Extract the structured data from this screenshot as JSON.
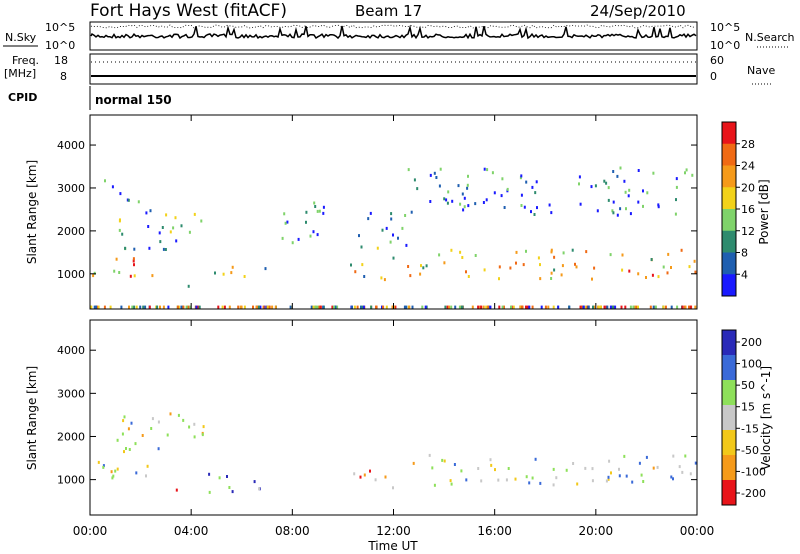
{
  "header": {
    "station": "Fort Hays West (fitACF)",
    "beam": "Beam 17",
    "date": "24/Sep/2010"
  },
  "noise_panel": {
    "left_label": "N.Sky",
    "left_ticks": [
      "10^5",
      "10^0"
    ],
    "right_label": "N.Search",
    "right_ticks": [
      "10^5",
      "10^0"
    ]
  },
  "freq_panel": {
    "left_label_1": "Freq.",
    "left_label_2": "[MHz]",
    "left_ticks": [
      "18",
      "8"
    ],
    "right_label": "Nave",
    "right_ticks": [
      "60",
      "0"
    ]
  },
  "cpid_panel": {
    "label": "CPID",
    "value": "normal 150"
  },
  "x_axis": {
    "label": "Time UT",
    "ticks": [
      "00:00",
      "04:00",
      "08:00",
      "12:00",
      "16:00",
      "20:00",
      "00:00"
    ]
  },
  "colors": {
    "power_scale": [
      "#1a1aff",
      "#1f5fb0",
      "#2e8b6e",
      "#7fd36a",
      "#f2d21a",
      "#f59a1a",
      "#f06a14",
      "#e8141a"
    ],
    "velocity_scale": [
      "#2a2ab8",
      "#3a6ad8",
      "#8ee05a",
      "#c8c8c8",
      "#f2c81a",
      "#f59a1a",
      "#e8141a"
    ]
  },
  "chart_data": [
    {
      "type": "heatmap",
      "title": "Power",
      "ylabel": "Slant Range [km]",
      "xlabel": "Time UT",
      "x_ticks": [
        "00:00",
        "04:00",
        "08:00",
        "12:00",
        "16:00",
        "20:00",
        "00:00"
      ],
      "xlim_hours": [
        0,
        24
      ],
      "ylim": [
        180,
        4700
      ],
      "y_ticks": [
        "1000",
        "2000",
        "3000",
        "4000"
      ],
      "colorbar": {
        "label": "Power [dB]",
        "ticks": [
          "4",
          "8",
          "12",
          "16",
          "20",
          "24",
          "28"
        ],
        "range": [
          0,
          30
        ]
      },
      "regions": [
        {
          "t0": 0.0,
          "t1": 2.5,
          "r0": 900,
          "r1": 1500,
          "level": 0.65
        },
        {
          "t0": 1.0,
          "t1": 4.5,
          "r0": 1600,
          "r1": 2600,
          "level": 0.3
        },
        {
          "t0": 0.5,
          "t1": 2.0,
          "r0": 2700,
          "r1": 3300,
          "level": 0.25
        },
        {
          "t0": 2.7,
          "t1": 4.0,
          "r0": 650,
          "r1": 800,
          "level": 0.45
        },
        {
          "t0": 4.6,
          "t1": 7.0,
          "r0": 850,
          "r1": 1200,
          "level": 0.5
        },
        {
          "t0": 7.5,
          "t1": 9.5,
          "r0": 1700,
          "r1": 2900,
          "level": 0.2
        },
        {
          "t0": 10.0,
          "t1": 12.0,
          "r0": 900,
          "r1": 1300,
          "level": 0.5
        },
        {
          "t0": 10.5,
          "t1": 12.5,
          "r0": 1400,
          "r1": 2500,
          "level": 0.25
        },
        {
          "t0": 12.5,
          "t1": 24.0,
          "r0": 900,
          "r1": 1600,
          "level": 0.6
        },
        {
          "t0": 12.5,
          "t1": 24.0,
          "r0": 2400,
          "r1": 3500,
          "level": 0.2
        }
      ]
    },
    {
      "type": "heatmap",
      "title": "Velocity",
      "ylabel": "Slant Range [km]",
      "xlabel": "Time UT",
      "x_ticks": [
        "00:00",
        "04:00",
        "08:00",
        "12:00",
        "16:00",
        "20:00",
        "00:00"
      ],
      "xlim_hours": [
        0,
        24
      ],
      "ylim": [
        180,
        4700
      ],
      "y_ticks": [
        "1000",
        "2000",
        "3000",
        "4000"
      ],
      "colorbar": {
        "label": "Velocity [m s^-1]",
        "ticks": [
          "200",
          "100",
          "50",
          "15",
          "-15",
          "-50",
          "-100",
          "-200"
        ],
        "range": [
          -250,
          250
        ]
      },
      "regions": [
        {
          "t0": 0.0,
          "t1": 2.5,
          "r0": 900,
          "r1": 1500,
          "level": 0.45
        },
        {
          "t0": 1.0,
          "t1": 4.5,
          "r0": 1600,
          "r1": 2600,
          "level": 0.55
        },
        {
          "t0": 2.7,
          "t1": 4.0,
          "r0": 650,
          "r1": 800,
          "level": 0.65
        },
        {
          "t0": 4.6,
          "t1": 7.0,
          "r0": 700,
          "r1": 1200,
          "level": 0.3
        },
        {
          "t0": 10.0,
          "t1": 12.0,
          "r0": 800,
          "r1": 1300,
          "level": 0.75
        },
        {
          "t0": 12.5,
          "t1": 24.0,
          "r0": 900,
          "r1": 1600,
          "level": 0.45
        }
      ]
    }
  ]
}
